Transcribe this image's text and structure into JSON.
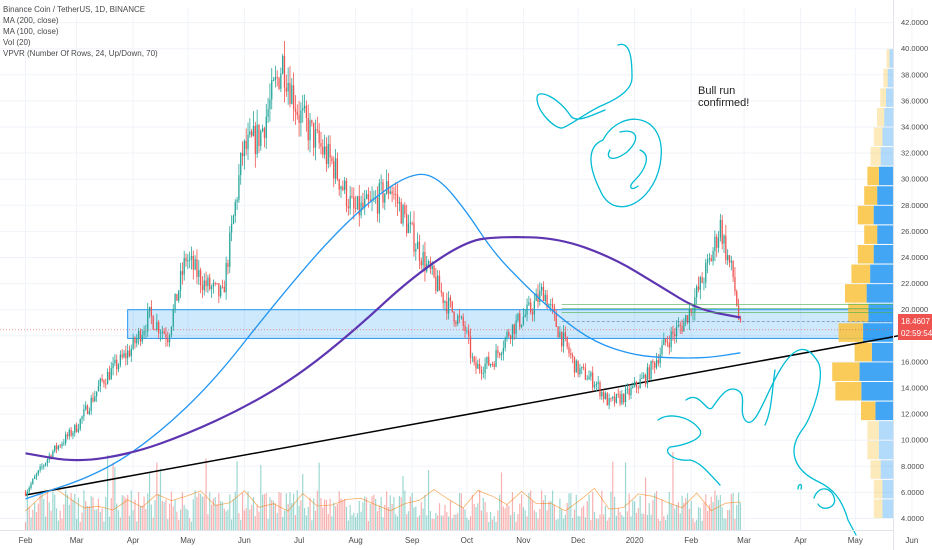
{
  "header": {
    "legend": [
      "Binance Coin / TetherUS, 1D, BINANCE",
      "MA (200, close)",
      "MA (100, close)",
      "Vol (20)",
      "VPVR (Number Of Rows, 24, Up/Down, 70)"
    ]
  },
  "colors": {
    "up": "#26a69a",
    "down": "#ef5350",
    "ma100": "#2196f3",
    "ma200": "#5e35b1",
    "trendline": "#000000",
    "zone": "#2196f3",
    "drawing": "#00bcd4",
    "price_badge": "#ef5350"
  },
  "annotation": {
    "line1": "Bull run",
    "line2": "confirmed!"
  },
  "price_badge": {
    "price": "18.4607",
    "countdown": "02:59:54"
  },
  "chart_data": {
    "type": "candlestick",
    "symbol": "Binance Coin / TetherUS",
    "interval": "1D",
    "exchange": "BINANCE",
    "y_ticks": [
      "4.0000",
      "6.0000",
      "8.0000",
      "10.0000",
      "12.0000",
      "14.0000",
      "16.0000",
      "18.0000",
      "20.0000",
      "22.0000",
      "24.0000",
      "26.0000",
      "28.0000",
      "30.0000",
      "32.0000",
      "34.0000",
      "36.0000",
      "38.0000",
      "40.0000",
      "42.0000"
    ],
    "x_ticks": [
      "Feb",
      "Mar",
      "Apr",
      "May",
      "Jun",
      "Jul",
      "Aug",
      "Sep",
      "Oct",
      "Nov",
      "Dec",
      "2020",
      "Feb",
      "Mar",
      "Apr",
      "May",
      "Jun"
    ],
    "ylim": [
      3,
      42.5
    ],
    "price_path": [
      [
        "2019-02-01",
        6.0
      ],
      [
        "2019-02-15",
        9.0
      ],
      [
        "2019-03-01",
        11.0
      ],
      [
        "2019-03-15",
        14.5
      ],
      [
        "2019-03-31",
        17.0
      ],
      [
        "2019-04-10",
        19.5
      ],
      [
        "2019-04-20",
        18.0
      ],
      [
        "2019-04-30",
        24.0
      ],
      [
        "2019-05-10",
        22.0
      ],
      [
        "2019-05-20",
        21.0
      ],
      [
        "2019-05-31",
        32.0
      ],
      [
        "2019-06-10",
        33.5
      ],
      [
        "2019-06-22",
        39.0
      ],
      [
        "2019-07-01",
        35.0
      ],
      [
        "2019-07-10",
        33.0
      ],
      [
        "2019-07-20",
        31.0
      ],
      [
        "2019-07-31",
        27.5
      ],
      [
        "2019-08-10",
        28.0
      ],
      [
        "2019-08-20",
        29.5
      ],
      [
        "2019-08-31",
        26.0
      ],
      [
        "2019-09-10",
        23.0
      ],
      [
        "2019-09-20",
        20.5
      ],
      [
        "2019-09-30",
        18.5
      ],
      [
        "2019-10-05",
        15.5
      ],
      [
        "2019-10-15",
        16.0
      ],
      [
        "2019-10-25",
        18.5
      ],
      [
        "2019-11-05",
        20.0
      ],
      [
        "2019-11-12",
        21.5
      ],
      [
        "2019-11-20",
        18.5
      ],
      [
        "2019-11-30",
        15.5
      ],
      [
        "2019-12-10",
        14.5
      ],
      [
        "2019-12-18",
        12.8
      ],
      [
        "2019-12-28",
        13.5
      ],
      [
        "2020-01-08",
        15.0
      ],
      [
        "2020-01-18",
        17.5
      ],
      [
        "2020-01-28",
        19.0
      ],
      [
        "2020-02-05",
        21.5
      ],
      [
        "2020-02-12",
        24.0
      ],
      [
        "2020-02-17",
        26.5
      ],
      [
        "2020-02-20",
        24.5
      ],
      [
        "2020-02-24",
        22.5
      ],
      [
        "2020-02-27",
        19.5
      ],
      [
        "2020-02-28",
        18.46
      ]
    ],
    "ma100": [
      [
        "2019-02-01",
        5.5
      ],
      [
        "2019-03-15",
        7.5
      ],
      [
        "2019-04-15",
        10.5
      ],
      [
        "2019-05-15",
        14.5
      ],
      [
        "2019-06-15",
        20.0
      ],
      [
        "2019-07-15",
        25.0
      ],
      [
        "2019-08-10",
        28.5
      ],
      [
        "2019-09-01",
        30.5
      ],
      [
        "2019-09-15",
        30.2
      ],
      [
        "2019-10-01",
        27.5
      ],
      [
        "2019-10-15",
        24.5
      ],
      [
        "2019-11-01",
        22.0
      ],
      [
        "2019-11-20",
        19.5
      ],
      [
        "2019-12-10",
        17.5
      ],
      [
        "2020-01-01",
        16.5
      ],
      [
        "2020-01-20",
        16.3
      ],
      [
        "2020-02-10",
        16.3
      ],
      [
        "2020-02-28",
        16.7
      ]
    ],
    "ma200": [
      [
        "2019-02-01",
        9.0
      ],
      [
        "2019-03-01",
        8.3
      ],
      [
        "2019-04-01",
        9.0
      ],
      [
        "2019-05-01",
        10.5
      ],
      [
        "2019-06-01",
        12.5
      ],
      [
        "2019-07-01",
        15.0
      ],
      [
        "2019-08-01",
        18.5
      ],
      [
        "2019-09-01",
        22.5
      ],
      [
        "2019-10-01",
        25.3
      ],
      [
        "2019-10-20",
        25.6
      ],
      [
        "2019-11-20",
        25.5
      ],
      [
        "2019-12-20",
        24.0
      ],
      [
        "2020-01-15",
        21.8
      ],
      [
        "2020-02-05",
        20.0
      ],
      [
        "2020-02-28",
        19.4
      ]
    ],
    "zone": {
      "low": 17.8,
      "high": 20.0
    },
    "trendline": [
      [
        "2019-02-01",
        5.8
      ],
      [
        "2020-06-25",
        18.8
      ]
    ]
  }
}
